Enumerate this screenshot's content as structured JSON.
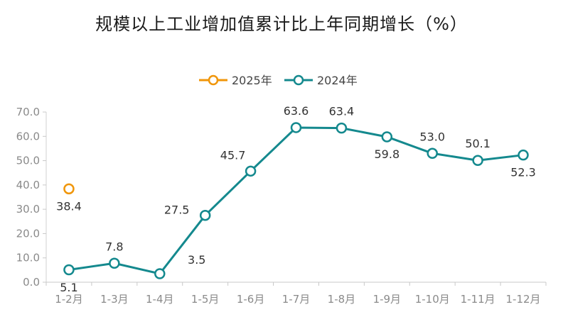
{
  "chart_data": {
    "type": "line",
    "title": "规模以上工业增加值累计比上年同期增长（%）",
    "categories": [
      "1-2月",
      "1-3月",
      "1-4月",
      "1-5月",
      "1-6月",
      "1-7月",
      "1-8月",
      "1-9月",
      "1-10月",
      "1-11月",
      "1-12月"
    ],
    "series": [
      {
        "name": "2025年",
        "color": "#f0960a",
        "values": [
          38.4,
          null,
          null,
          null,
          null,
          null,
          null,
          null,
          null,
          null,
          null
        ]
      },
      {
        "name": "2024年",
        "color": "#14898e",
        "values": [
          5.1,
          7.8,
          3.5,
          27.5,
          45.7,
          63.6,
          63.4,
          59.8,
          53.0,
          50.1,
          52.3
        ]
      }
    ],
    "ylim": [
      0,
      70
    ],
    "yticks": [
      "0.0",
      "10.0",
      "20.0",
      "30.0",
      "40.0",
      "50.0",
      "60.0",
      "70.0"
    ],
    "value_labels": {
      "2025年": [
        "38.4",
        null,
        null,
        null,
        null,
        null,
        null,
        null,
        null,
        null,
        null
      ],
      "2024年": [
        "5.1",
        "7.8",
        "3.5",
        "27.5",
        "45.7",
        "63.6",
        "63.4",
        "59.8",
        "53.0",
        "50.1",
        "52.3"
      ]
    },
    "legend_position": "top-center",
    "grid": false
  }
}
